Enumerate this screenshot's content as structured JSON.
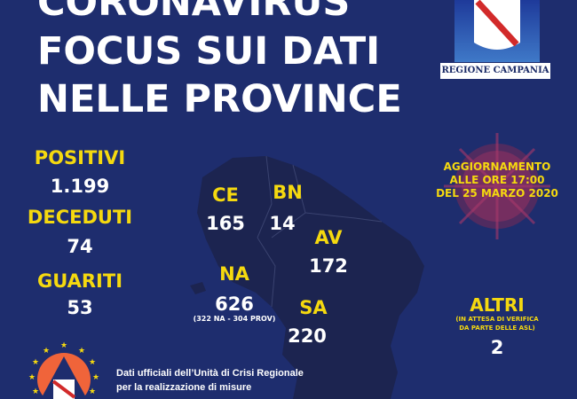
{
  "title": {
    "line1": "CORONAVIRUS",
    "line2": "FOCUS SUI DATI",
    "line3": "NELLE PROVINCE"
  },
  "logo": {
    "label": "REGIONE CAMPANIA"
  },
  "totals": [
    {
      "label": "POSITIVI",
      "value": "1.199"
    },
    {
      "label": "DECEDUTI",
      "value": "74"
    },
    {
      "label": "GUARITI",
      "value": "53"
    }
  ],
  "update": {
    "line1": "AGGIORNAMENTO",
    "line2": "ALLE ORE 17:00",
    "line3": "DEL 25 MARZO 2020"
  },
  "provinces": {
    "ce": {
      "label": "CE",
      "value": "165"
    },
    "bn": {
      "label": "BN",
      "value": "14"
    },
    "av": {
      "label": "AV",
      "value": "172"
    },
    "na": {
      "label": "NA",
      "value": "626",
      "note": "(322 NA - 304 PROV)"
    },
    "sa": {
      "label": "SA",
      "value": "220"
    }
  },
  "others": {
    "label": "ALTRI",
    "note1": "(IN ATTESA DI VERIFICA",
    "note2": "DA PARTE DELLE ASL)",
    "value": "2"
  },
  "footer": {
    "line1": "Dati ufficiali dell’Unità di Crisi Regionale",
    "line2": "per la realizzazione di misure"
  },
  "colors": {
    "background": "#1e2d6e",
    "accent": "#f5d90f",
    "map": "#1c2450",
    "virus": "#b33a5a"
  }
}
